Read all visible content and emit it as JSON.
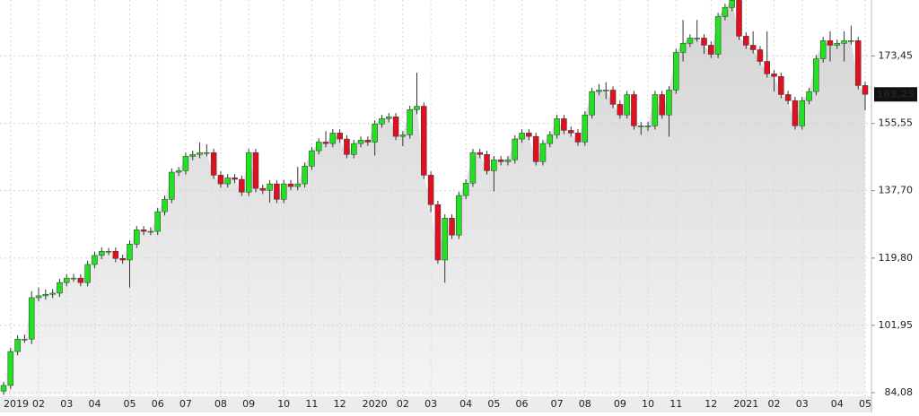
{
  "chart_data": {
    "type": "candlestick",
    "categories": [
      null,
      "2019",
      null,
      null,
      null,
      "02",
      null,
      null,
      null,
      "03",
      null,
      null,
      null,
      "04",
      null,
      null,
      null,
      null,
      "05",
      null,
      null,
      null,
      "06",
      null,
      null,
      null,
      "07",
      null,
      null,
      null,
      null,
      "08",
      null,
      null,
      null,
      "09",
      null,
      null,
      null,
      null,
      "10",
      null,
      null,
      null,
      "11",
      null,
      null,
      null,
      "12",
      null,
      null,
      null,
      null,
      "2020",
      null,
      null,
      null,
      "02",
      null,
      null,
      null,
      "03",
      null,
      null,
      null,
      null,
      "04",
      null,
      null,
      null,
      "05",
      null,
      null,
      null,
      "06",
      null,
      null,
      null,
      null,
      "07",
      null,
      null,
      null,
      "08",
      null,
      null,
      null,
      null,
      "09",
      null,
      null,
      null,
      "10",
      null,
      null,
      null,
      "11",
      null,
      null,
      null,
      null,
      "12",
      null,
      null,
      null,
      null,
      "2021",
      null,
      null,
      null,
      "02",
      null,
      null,
      null,
      "03",
      null,
      null,
      null,
      null,
      "04",
      null,
      null,
      null,
      "05"
    ],
    "open": [
      84.5,
      86.0,
      95.0,
      98.3,
      98.3,
      109.3,
      109.8,
      110.2,
      110.5,
      113.3,
      114.5,
      114.5,
      113.3,
      118.1,
      120.5,
      121.6,
      121.6,
      119.7,
      119.3,
      123.5,
      127.3,
      126.9,
      126.9,
      132.1,
      135.4,
      142.6,
      143.0,
      146.8,
      147.3,
      147.8,
      147.8,
      141.8,
      139.5,
      141.1,
      140.7,
      137.3,
      147.8,
      138.3,
      137.8,
      139.5,
      135.4,
      139.5,
      138.8,
      139.5,
      144.2,
      148.3,
      150.6,
      150.2,
      153.0,
      151.4,
      147.3,
      150.2,
      151.1,
      150.6,
      155.4,
      156.8,
      157.3,
      152.1,
      152.5,
      159.2,
      160.1,
      141.8,
      134.0,
      119.3,
      130.4,
      125.9,
      136.4,
      139.7,
      147.8,
      147.3,
      143.0,
      145.9,
      145.4,
      145.9,
      151.4,
      153.0,
      152.1,
      145.4,
      150.2,
      152.5,
      156.8,
      153.7,
      153.0,
      150.6,
      157.8,
      164.0,
      164.4,
      164.4,
      160.6,
      157.8,
      163.2,
      154.9,
      154.9,
      154.9,
      163.2,
      157.8,
      164.4,
      174.4,
      176.8,
      178.2,
      178.2,
      176.3,
      173.9,
      183.9,
      186.3,
      188.2,
      178.7,
      176.3,
      175.1,
      172.0,
      168.7,
      168.0,
      163.2,
      161.6,
      154.9,
      161.6,
      164.0,
      172.7,
      177.5,
      176.3,
      176.8,
      177.5,
      177.5,
      165.6
    ],
    "high": [
      87.0,
      96.0,
      99.3,
      99.5,
      111.0,
      112.0,
      111.5,
      111.6,
      114.3,
      115.5,
      115.6,
      115.5,
      119.1,
      121.5,
      122.6,
      122.5,
      122.6,
      120.7,
      124.5,
      128.3,
      128.3,
      128.0,
      133.1,
      136.4,
      143.6,
      144.0,
      147.8,
      148.3,
      150.5,
      150.0,
      148.8,
      142.8,
      142.1,
      142.1,
      141.7,
      148.8,
      148.8,
      139.3,
      140.5,
      140.5,
      140.5,
      140.5,
      144.0,
      145.2,
      149.3,
      151.6,
      153.5,
      154.0,
      154.0,
      152.4,
      151.2,
      152.1,
      152.1,
      156.4,
      157.8,
      158.3,
      158.3,
      153.5,
      160.2,
      169.0,
      161.1,
      142.8,
      135.0,
      131.4,
      131.4,
      137.4,
      140.7,
      148.8,
      148.8,
      148.3,
      146.9,
      146.9,
      146.9,
      152.4,
      154.0,
      154.0,
      153.1,
      151.2,
      153.5,
      157.8,
      157.8,
      154.7,
      154.0,
      158.8,
      165.0,
      166.0,
      166.5,
      165.4,
      161.6,
      164.2,
      164.2,
      156.0,
      156.0,
      164.2,
      164.2,
      165.4,
      175.4,
      183.0,
      179.2,
      183.0,
      179.2,
      177.3,
      184.9,
      187.3,
      189.2,
      189.2,
      179.7,
      180.0,
      176.1,
      180.0,
      169.7,
      169.0,
      164.2,
      162.6,
      162.6,
      165.0,
      173.7,
      178.5,
      180.0,
      177.8,
      180.0,
      181.5,
      178.5,
      166.6
    ],
    "low": [
      83.5,
      85.0,
      94.0,
      97.3,
      97.0,
      108.3,
      108.8,
      109.2,
      109.5,
      112.3,
      113.5,
      112.3,
      112.3,
      117.1,
      119.5,
      120.6,
      118.7,
      118.3,
      112.0,
      122.5,
      125.9,
      125.9,
      125.9,
      131.1,
      134.4,
      141.6,
      142.0,
      145.8,
      146.3,
      146.8,
      140.8,
      138.5,
      138.5,
      139.7,
      136.3,
      136.3,
      137.3,
      136.8,
      134.5,
      134.4,
      134.4,
      137.8,
      137.8,
      138.5,
      143.2,
      147.3,
      149.2,
      149.2,
      150.4,
      146.3,
      146.3,
      149.2,
      149.6,
      147.0,
      154.4,
      155.8,
      151.1,
      149.5,
      151.5,
      158.0,
      140.8,
      132.0,
      118.3,
      113.3,
      124.9,
      124.9,
      135.4,
      138.7,
      146.3,
      142.0,
      137.5,
      144.4,
      144.4,
      144.9,
      150.4,
      151.1,
      144.4,
      144.4,
      149.2,
      151.5,
      152.7,
      152.0,
      149.6,
      149.6,
      156.8,
      163.0,
      162.0,
      159.6,
      156.8,
      156.8,
      153.9,
      152.5,
      153.5,
      153.9,
      156.8,
      152.0,
      163.4,
      172.0,
      175.8,
      177.2,
      174.0,
      172.9,
      172.9,
      182.9,
      185.3,
      177.7,
      175.3,
      174.1,
      171.0,
      167.7,
      164.0,
      162.2,
      160.6,
      153.9,
      153.9,
      160.6,
      163.0,
      171.7,
      172.0,
      175.3,
      172.0,
      176.5,
      164.6,
      159.0
    ],
    "close": [
      86.0,
      95.0,
      98.3,
      98.3,
      109.3,
      109.8,
      110.2,
      110.5,
      113.3,
      114.5,
      114.5,
      113.3,
      118.1,
      120.5,
      121.6,
      121.6,
      119.7,
      119.3,
      123.5,
      127.3,
      126.9,
      126.9,
      132.1,
      135.4,
      142.6,
      143.0,
      146.8,
      147.3,
      147.8,
      147.8,
      141.8,
      139.5,
      141.1,
      140.7,
      137.3,
      147.8,
      138.3,
      137.8,
      139.5,
      135.4,
      139.5,
      138.8,
      139.5,
      144.2,
      148.3,
      150.6,
      150.2,
      153.0,
      151.4,
      147.3,
      150.2,
      151.1,
      150.6,
      155.4,
      156.8,
      157.3,
      152.1,
      152.5,
      159.2,
      160.1,
      141.8,
      134.0,
      119.3,
      130.4,
      125.9,
      136.4,
      139.7,
      147.8,
      147.3,
      143.0,
      145.9,
      145.4,
      145.9,
      151.4,
      153.0,
      152.1,
      145.4,
      150.2,
      152.5,
      156.8,
      153.7,
      153.0,
      150.6,
      157.8,
      164.0,
      164.4,
      164.4,
      160.6,
      157.8,
      163.2,
      154.9,
      154.9,
      154.9,
      163.2,
      157.8,
      164.4,
      174.4,
      176.8,
      178.2,
      178.2,
      176.3,
      173.9,
      183.9,
      186.3,
      188.2,
      178.7,
      176.3,
      175.1,
      172.0,
      168.7,
      168.0,
      163.2,
      161.6,
      154.9,
      161.6,
      164.0,
      172.7,
      177.5,
      176.3,
      176.8,
      177.5,
      177.5,
      165.6,
      163.25
    ],
    "up_color": "#22e022",
    "down_color": "#e01020",
    "year_label_color": "#e03030",
    "last_price_label": "163,25",
    "ylim": [
      83.6,
      188.3
    ],
    "yticks": [
      {
        "value": 84.08,
        "label": "84,08"
      },
      {
        "value": 101.95,
        "label": "101,95"
      },
      {
        "value": 119.8,
        "label": "119,80"
      },
      {
        "value": 137.7,
        "label": "137,70"
      },
      {
        "value": 155.55,
        "label": "155,55"
      },
      {
        "value": 173.45,
        "label": "173,45"
      }
    ],
    "grid": true
  }
}
